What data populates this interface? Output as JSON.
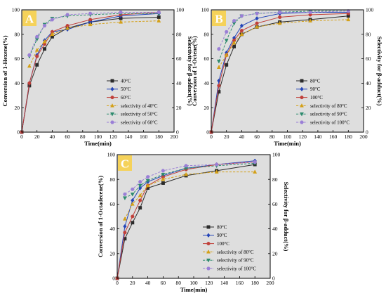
{
  "colors": {
    "panel_bg": "#dedede",
    "label_bg": "#f5d25a",
    "black": "#2b2b2b",
    "blue": "#2445b8",
    "red": "#c0403a",
    "olive": "#d4a017",
    "teal": "#2e8b6e",
    "violet": "#9a7fd6"
  },
  "chart_data": [
    {
      "type": "line",
      "panel_label": "A",
      "xlabel": "Time(min)",
      "ylabel": "Conversion of 1-Hexene(%)",
      "y2label": "Selectivity for β-adduct(%)",
      "xlim": [
        0,
        200
      ],
      "ylim": [
        0,
        100
      ],
      "y2lim": [
        0,
        100
      ],
      "xticks": [
        "0",
        "20",
        "40",
        "60",
        "80",
        "100",
        "120",
        "140",
        "160",
        "180",
        "200"
      ],
      "yticks": [
        "0",
        "20",
        "40",
        "60",
        "80",
        "100"
      ],
      "y2ticks": [
        "0",
        "20",
        "40",
        "60",
        "80",
        "100"
      ],
      "grid": false,
      "legend_position": "bottom-right",
      "x": [
        0,
        10,
        20,
        30,
        40,
        60,
        90,
        130,
        180
      ],
      "series": [
        {
          "name": "40°C",
          "marker": "square",
          "color": "black",
          "dashed": false,
          "values": [
            0,
            38,
            55,
            68,
            78,
            85,
            90,
            93,
            94
          ]
        },
        {
          "name": "50°C",
          "marker": "diamond",
          "color": "blue",
          "dashed": false,
          "values": [
            0,
            40,
            63,
            75,
            82,
            84,
            90,
            95,
            97
          ]
        },
        {
          "name": "60°C",
          "marker": "circle",
          "color": "red",
          "dashed": false,
          "values": [
            0,
            40,
            62,
            72,
            82,
            87,
            92,
            96,
            98
          ]
        },
        {
          "name": "selectivity of 40°C",
          "marker": "triangle-up",
          "color": "olive",
          "dashed": true,
          "values": [
            null,
            54,
            67,
            74,
            80,
            85,
            88,
            90,
            91
          ]
        },
        {
          "name": "selectivity of 50°C",
          "marker": "triangle-down",
          "color": "teal",
          "dashed": true,
          "values": [
            null,
            62,
            76,
            88,
            93,
            95,
            96,
            97,
            97
          ]
        },
        {
          "name": "selectivity of 60°C",
          "marker": "hexagon",
          "color": "violet",
          "dashed": true,
          "values": [
            null,
            63,
            78,
            87,
            92,
            96,
            97,
            98,
            98
          ]
        }
      ]
    },
    {
      "type": "line",
      "panel_label": "B",
      "xlabel": "Time(min)",
      "ylabel": "Conversion of 1-Octene(%)",
      "y2label": "Selectivity for β-adduct(%)",
      "xlim": [
        0,
        200
      ],
      "ylim": [
        0,
        100
      ],
      "y2lim": [
        0,
        100
      ],
      "xticks": [
        "0",
        "20",
        "40",
        "60",
        "80",
        "100",
        "120",
        "140",
        "160",
        "180",
        "200"
      ],
      "yticks": [
        "0",
        "20",
        "40",
        "60",
        "80",
        "100"
      ],
      "y2ticks": [
        "0",
        "20",
        "40",
        "60",
        "80",
        "100"
      ],
      "grid": false,
      "legend_position": "bottom-right",
      "x": [
        0,
        10,
        20,
        30,
        40,
        60,
        90,
        130,
        180
      ],
      "series": [
        {
          "name": "80°C",
          "marker": "square",
          "color": "black",
          "dashed": false,
          "values": [
            0,
            33,
            55,
            70,
            80,
            86,
            90,
            92,
            95
          ]
        },
        {
          "name": "90°C",
          "marker": "diamond",
          "color": "blue",
          "dashed": false,
          "values": [
            0,
            42,
            65,
            77,
            87,
            93,
            97,
            98,
            98
          ]
        },
        {
          "name": "100°C",
          "marker": "circle",
          "color": "red",
          "dashed": false,
          "values": [
            0,
            38,
            63,
            75,
            83,
            89,
            94,
            96,
            97
          ]
        },
        {
          "name": "selectivity of 80°C",
          "marker": "triangle-up",
          "color": "olive",
          "dashed": true,
          "values": [
            null,
            53,
            63,
            73,
            80,
            86,
            89,
            91,
            92
          ]
        },
        {
          "name": "selectivity of 90°C",
          "marker": "triangle-down",
          "color": "teal",
          "dashed": true,
          "values": [
            null,
            58,
            75,
            89,
            95,
            97,
            98,
            99,
            99
          ]
        },
        {
          "name": "selectivity of 100°C",
          "marker": "hexagon",
          "color": "violet",
          "dashed": true,
          "values": [
            null,
            68,
            82,
            91,
            95,
            97,
            98,
            98,
            99
          ]
        }
      ]
    },
    {
      "type": "line",
      "panel_label": "C",
      "xlabel": "Time(min)",
      "ylabel": "Conversion of 1-Octadecene(%)",
      "y2label": "Selectivity for β-adduct(%)",
      "xlim": [
        0,
        200
      ],
      "ylim": [
        0,
        100
      ],
      "y2lim": [
        0,
        100
      ],
      "xticks": [
        "0",
        "20",
        "40",
        "60",
        "80",
        "100",
        "120",
        "140",
        "160",
        "180",
        "200"
      ],
      "yticks": [
        "0",
        "20",
        "40",
        "60",
        "80",
        "100"
      ],
      "y2ticks": [
        "0",
        "20",
        "40",
        "60",
        "80",
        "100"
      ],
      "grid": false,
      "legend_position": "bottom-right",
      "x": [
        0,
        10,
        20,
        30,
        40,
        60,
        90,
        130,
        180
      ],
      "series": [
        {
          "name": "80°C",
          "marker": "square",
          "color": "black",
          "dashed": false,
          "values": [
            0,
            32,
            45,
            57,
            73,
            77,
            83,
            87,
            92
          ]
        },
        {
          "name": "90°C",
          "marker": "diamond",
          "color": "blue",
          "dashed": false,
          "values": [
            0,
            42,
            63,
            73,
            78,
            83,
            89,
            92,
            95
          ]
        },
        {
          "name": "100°C",
          "marker": "circle",
          "color": "red",
          "dashed": false,
          "values": [
            0,
            37,
            50,
            63,
            75,
            82,
            88,
            92,
            94
          ]
        },
        {
          "name": "selectivity of 80°C",
          "marker": "triangle-up",
          "color": "olive",
          "dashed": true,
          "values": [
            null,
            48,
            60,
            67,
            75,
            80,
            84,
            86,
            86
          ]
        },
        {
          "name": "selectivity of 90°C",
          "marker": "triangle-down",
          "color": "teal",
          "dashed": true,
          "values": [
            null,
            65,
            68,
            75,
            79,
            84,
            89,
            91,
            93
          ]
        },
        {
          "name": "selectivity of 100°C",
          "marker": "hexagon",
          "color": "violet",
          "dashed": true,
          "values": [
            null,
            68,
            72,
            78,
            82,
            87,
            91,
            92,
            94
          ]
        }
      ]
    }
  ]
}
